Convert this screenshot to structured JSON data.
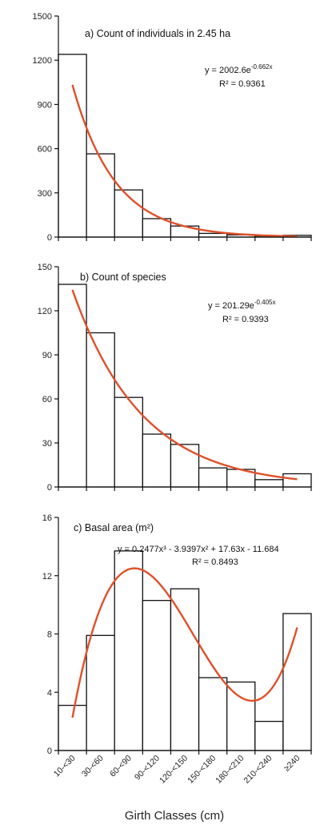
{
  "chart_data": [
    {
      "type": "bar",
      "title": "a) Count of individuals in 2.45 ha",
      "categories": [
        "10-<30",
        "30-<60",
        "60-<90",
        "90-<120",
        "120-<150",
        "150-<180",
        "180-<210",
        "210-<240",
        "≥240"
      ],
      "values": [
        1240,
        565,
        320,
        125,
        75,
        25,
        15,
        8,
        12
      ],
      "ylim": [
        0,
        1500
      ],
      "yticks": [
        "0",
        "300",
        "600",
        "900",
        "1200",
        "1500"
      ],
      "trendline": {
        "kind": "exponential",
        "a": 2002.6,
        "b": -0.662
      },
      "equation": {
        "y": "y = 2002.6e",
        "exp": "-0.662x",
        "r2": "R² = 0.9361"
      }
    },
    {
      "type": "bar",
      "title": "b) Count of species",
      "categories": [
        "10-<30",
        "30-<60",
        "60-<90",
        "90-<120",
        "120-<150",
        "150-<180",
        "180-<210",
        "210-<240",
        "≥240"
      ],
      "values": [
        138,
        105,
        61,
        36,
        29,
        13,
        12,
        5,
        9
      ],
      "ylim": [
        0,
        150
      ],
      "yticks": [
        "0",
        "30",
        "60",
        "90",
        "120",
        "150"
      ],
      "trendline": {
        "kind": "exponential",
        "a": 201.29,
        "b": -0.405
      },
      "equation": {
        "y": "y = 201.29e",
        "exp": "-0.405x",
        "r2": "R² = 0.9393"
      }
    },
    {
      "type": "bar",
      "title": "c) Basal area (m²)",
      "categories": [
        "10-<30",
        "30-<60",
        "60-<90",
        "90-<120",
        "120-<150",
        "150-<180",
        "180-<210",
        "210-<240",
        "≥240"
      ],
      "values": [
        3.1,
        7.9,
        13.7,
        10.3,
        11.1,
        5.0,
        4.7,
        2.0,
        9.4
      ],
      "ylim": [
        0,
        16
      ],
      "yticks": [
        "0",
        "4",
        "8",
        "12",
        "16"
      ],
      "trendline": {
        "kind": "cubic",
        "c3": 0.2477,
        "c2": -3.9397,
        "c1": 17.63,
        "c0": -11.684
      },
      "equation": {
        "y": "y = 0.2477x³ - 3.9397x² + 17.63x - 11.684",
        "r2": "R² = 0.8493"
      }
    }
  ],
  "xlabel": "Girth Classes (cm)"
}
